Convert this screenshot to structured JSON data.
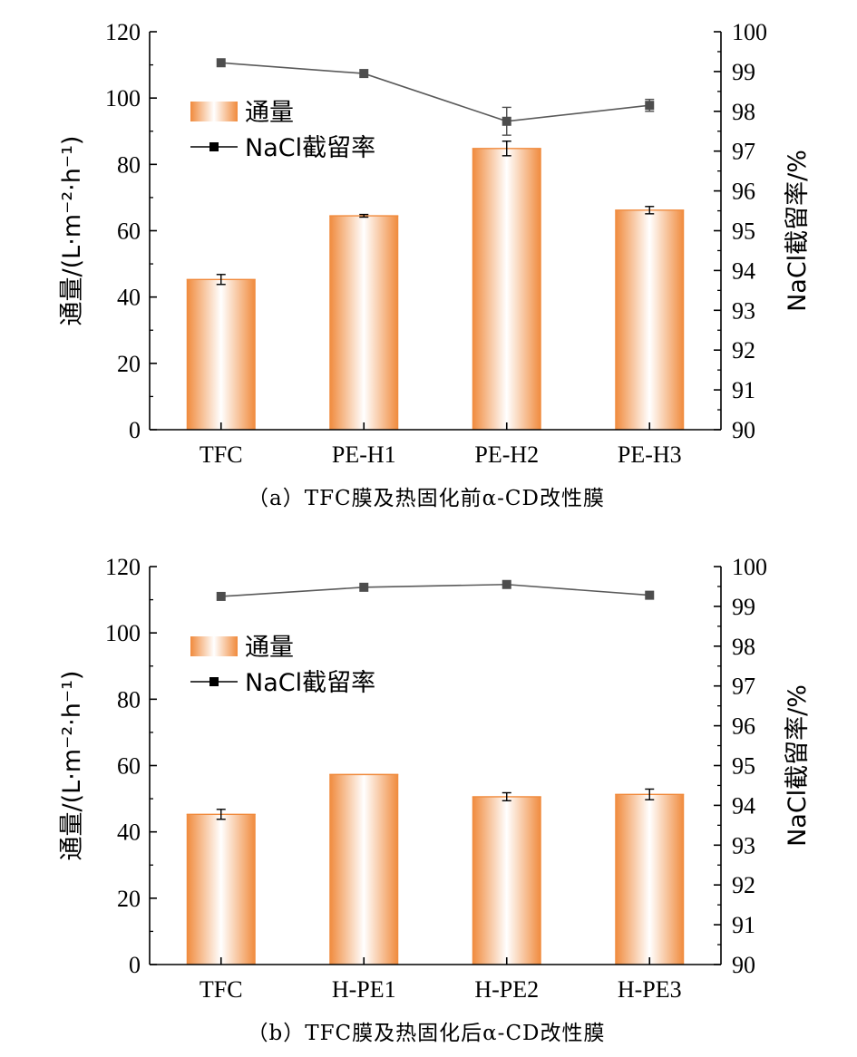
{
  "chart_data": [
    {
      "type": "bar",
      "panel": "a",
      "caption": "（a）TFC膜及热固化前α-CD改性膜",
      "categories": [
        "TFC",
        "PE-H1",
        "PE-H2",
        "PE-H3"
      ],
      "series": [
        {
          "name": "通量",
          "kind": "bar",
          "axis": "left",
          "values": [
            45.3,
            64.5,
            84.8,
            66.2
          ],
          "errors": [
            1.5,
            0.4,
            2.2,
            1.1
          ]
        },
        {
          "name": "NaCl截留率",
          "kind": "line",
          "axis": "right",
          "values": [
            99.22,
            98.95,
            97.75,
            98.15
          ],
          "errors": [
            0.0,
            0.0,
            0.35,
            0.15
          ]
        }
      ],
      "ylabel": "通量/(L·m⁻²·h⁻¹)",
      "y2label": "NaCl截留率/%",
      "ylim": [
        0,
        120
      ],
      "yticks": [
        "0",
        "20",
        "40",
        "60",
        "80",
        "100",
        "120"
      ],
      "y2lim": [
        90,
        100
      ],
      "y2ticks": [
        "90",
        "91",
        "92",
        "93",
        "94",
        "95",
        "96",
        "97",
        "98",
        "99",
        "100"
      ],
      "legend_position": "top-left"
    },
    {
      "type": "bar",
      "panel": "b",
      "caption": "（b）TFC膜及热固化后α-CD改性膜",
      "categories": [
        "TFC",
        "H-PE1",
        "H-PE2",
        "H-PE3"
      ],
      "series": [
        {
          "name": "通量",
          "kind": "bar",
          "axis": "left",
          "values": [
            45.3,
            57.3,
            50.6,
            51.3
          ],
          "errors": [
            1.5,
            0.0,
            1.2,
            1.6
          ]
        },
        {
          "name": "NaCl截留率",
          "kind": "line",
          "axis": "right",
          "values": [
            99.25,
            99.48,
            99.55,
            99.28
          ],
          "errors": [
            0.0,
            0.0,
            0.0,
            0.0
          ]
        }
      ],
      "ylabel": "通量/(L·m⁻²·h⁻¹)",
      "y2label": "NaCl截留率/%",
      "ylim": [
        0,
        120
      ],
      "yticks": [
        "0",
        "20",
        "40",
        "60",
        "80",
        "100",
        "120"
      ],
      "y2lim": [
        90,
        100
      ],
      "y2ticks": [
        "90",
        "91",
        "92",
        "93",
        "94",
        "95",
        "96",
        "97",
        "98",
        "99",
        "100"
      ],
      "legend_position": "top-left"
    }
  ],
  "colors": {
    "bar_edge": "#F08A3C",
    "bar_center": "#FFFFFF",
    "line": "#5A5A5A",
    "marker": "#4D4D4D",
    "axis": "#000000"
  }
}
